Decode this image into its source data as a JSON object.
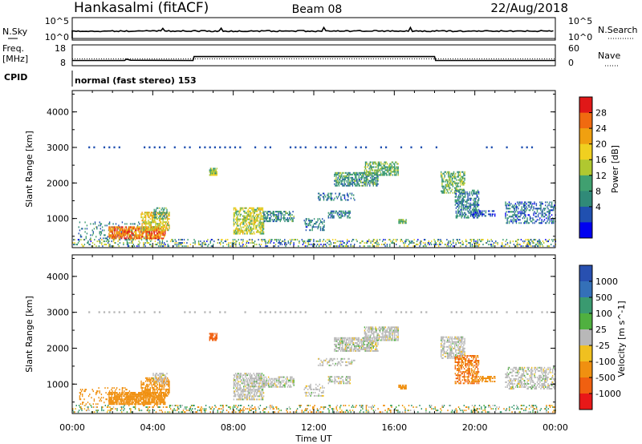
{
  "header": {
    "station": "Hankasalmi (fitACF)",
    "beam": "Beam 08",
    "date": "22/Aug/2018"
  },
  "status_panel": {
    "nsky_label": "N.Sky",
    "nsky_ticks": [
      "10^5",
      "10^0"
    ],
    "nsearch_label": "N.Search",
    "nsearch_ticks": [
      "10^5",
      "10^0"
    ],
    "freq_label_line1": "Freq.",
    "freq_label_line2": "[MHz]",
    "freq_ticks": [
      "18",
      "8"
    ],
    "nave_label": "Nave",
    "nave_ticks": [
      "60",
      "0"
    ],
    "cpid_label": "CPID",
    "cpid_text": "normal (fast stereo) 153",
    "freq_series": [
      {
        "t": 0.0,
        "mhz": 10.5
      },
      {
        "t": 2.6,
        "mhz": 10.5
      },
      {
        "t": 2.7,
        "mhz": 11.2
      },
      {
        "t": 2.9,
        "mhz": 10.6
      },
      {
        "t": 6.0,
        "mhz": 10.5
      },
      {
        "t": 6.05,
        "mhz": 12.4
      },
      {
        "t": 18.0,
        "mhz": 12.4
      },
      {
        "t": 18.05,
        "mhz": 10.5
      },
      {
        "t": 24.0,
        "mhz": 10.5
      }
    ],
    "nave_level": 20
  },
  "power_colorbar": {
    "label": "Power [dB]",
    "ticks": [
      "28",
      "24",
      "20",
      "16",
      "12",
      "8",
      "4"
    ],
    "colors": [
      "#e01818",
      "#f06a10",
      "#f0a010",
      "#f0d020",
      "#b0c830",
      "#40a070",
      "#308a78",
      "#2050b0",
      "#0000f0"
    ]
  },
  "velocity_colorbar": {
    "label": "Velocity [m s^-1]",
    "ticks": [
      "1000",
      "500",
      "100",
      "25",
      "-25",
      "-100",
      "-500",
      "-1000"
    ],
    "colors": [
      "#2850b0",
      "#3470b8",
      "#3a9a70",
      "#50b040",
      "#b8b8b8",
      "#f0c020",
      "#f09010",
      "#f06010",
      "#e81818"
    ]
  },
  "axes": {
    "y_label": "Slant Range [km]",
    "x_label": "Time UT",
    "y_ticks": [
      "1000",
      "2000",
      "3000",
      "4000"
    ],
    "x_ticks": [
      "00:00",
      "04:00",
      "08:00",
      "12:00",
      "16:00",
      "20:00",
      "00:00"
    ]
  },
  "chart_data": [
    {
      "type": "heatmap",
      "title": "Power",
      "xlabel": "Time UT",
      "ylabel": "Slant Range [km]",
      "xlim": [
        0,
        24
      ],
      "ylim": [
        180,
        4600
      ],
      "colorbar_range": [
        0,
        30
      ],
      "regions": [
        {
          "t0": 0.0,
          "t1": 24.0,
          "r0": 200,
          "r1": 420,
          "v": 10,
          "d": 0.28
        },
        {
          "t0": 0.3,
          "t1": 4.2,
          "r0": 420,
          "r1": 900,
          "v": 9,
          "d": 0.15
        },
        {
          "t0": 1.8,
          "t1": 4.6,
          "r0": 420,
          "r1": 780,
          "v": 24,
          "d": 0.75
        },
        {
          "t0": 3.4,
          "t1": 4.8,
          "r0": 650,
          "r1": 1150,
          "v": 18,
          "d": 0.55
        },
        {
          "t0": 4.0,
          "t1": 4.7,
          "r0": 1000,
          "r1": 1300,
          "v": 10,
          "d": 0.5
        },
        {
          "t0": 6.8,
          "t1": 7.2,
          "r0": 2200,
          "r1": 2400,
          "v": 14,
          "d": 0.8
        },
        {
          "t0": 8.0,
          "t1": 9.5,
          "r0": 550,
          "r1": 1300,
          "v": 16,
          "d": 0.6
        },
        {
          "t0": 9.5,
          "t1": 11.0,
          "r0": 900,
          "r1": 1200,
          "v": 9,
          "d": 0.55
        },
        {
          "t0": 11.5,
          "t1": 12.5,
          "r0": 650,
          "r1": 1000,
          "v": 8,
          "d": 0.35
        },
        {
          "t0": 12.7,
          "t1": 13.8,
          "r0": 1000,
          "r1": 1200,
          "v": 8,
          "d": 0.5
        },
        {
          "t0": 13.0,
          "t1": 15.2,
          "r0": 1900,
          "r1": 2300,
          "v": 10,
          "d": 0.65
        },
        {
          "t0": 14.5,
          "t1": 16.2,
          "r0": 2200,
          "r1": 2600,
          "v": 12,
          "d": 0.6
        },
        {
          "t0": 12.2,
          "t1": 14.0,
          "r0": 1500,
          "r1": 1700,
          "v": 8,
          "d": 0.35
        },
        {
          "t0": 16.2,
          "t1": 16.6,
          "r0": 850,
          "r1": 950,
          "v": 12,
          "d": 0.8
        },
        {
          "t0": 18.3,
          "t1": 19.5,
          "r0": 1700,
          "r1": 2300,
          "v": 12,
          "d": 0.55
        },
        {
          "t0": 19.0,
          "t1": 20.2,
          "r0": 1000,
          "r1": 1800,
          "v": 8,
          "d": 0.5
        },
        {
          "t0": 19.8,
          "t1": 21.0,
          "r0": 1050,
          "r1": 1200,
          "v": 6,
          "d": 0.45
        },
        {
          "t0": 21.5,
          "t1": 24.0,
          "r0": 850,
          "r1": 1450,
          "v": 7,
          "d": 0.4
        }
      ]
    },
    {
      "type": "heatmap",
      "title": "Velocity",
      "xlabel": "Time UT",
      "ylabel": "Slant Range [km]",
      "xlim": [
        0,
        24
      ],
      "ylim": [
        180,
        4600
      ],
      "colorbar_range": [
        -1000,
        1000
      ],
      "regions": [
        {
          "t0": 0.0,
          "t1": 24.0,
          "r0": 200,
          "r1": 420,
          "v": 0,
          "d": 0.22
        },
        {
          "t0": 0.3,
          "t1": 4.2,
          "r0": 420,
          "r1": 900,
          "v": -150,
          "d": 0.15
        },
        {
          "t0": 1.8,
          "t1": 4.6,
          "r0": 420,
          "r1": 780,
          "v": -150,
          "d": 0.75
        },
        {
          "t0": 3.4,
          "t1": 4.8,
          "r0": 650,
          "r1": 1150,
          "v": -150,
          "d": 0.55
        },
        {
          "t0": 4.0,
          "t1": 4.7,
          "r0": 1000,
          "r1": 1300,
          "v": 0,
          "d": 0.45
        },
        {
          "t0": 6.8,
          "t1": 7.2,
          "r0": 2200,
          "r1": 2400,
          "v": -500,
          "d": 0.8
        },
        {
          "t0": 8.0,
          "t1": 9.5,
          "r0": 550,
          "r1": 1300,
          "v": 0,
          "d": 0.6
        },
        {
          "t0": 9.5,
          "t1": 11.0,
          "r0": 900,
          "r1": 1200,
          "v": 0,
          "d": 0.55
        },
        {
          "t0": 11.5,
          "t1": 12.5,
          "r0": 650,
          "r1": 1000,
          "v": 0,
          "d": 0.35
        },
        {
          "t0": 12.7,
          "t1": 13.8,
          "r0": 1000,
          "r1": 1200,
          "v": 0,
          "d": 0.5
        },
        {
          "t0": 13.0,
          "t1": 15.2,
          "r0": 1900,
          "r1": 2300,
          "v": 0,
          "d": 0.65
        },
        {
          "t0": 14.5,
          "t1": 16.2,
          "r0": 2200,
          "r1": 2600,
          "v": 0,
          "d": 0.6
        },
        {
          "t0": 12.2,
          "t1": 14.0,
          "r0": 1500,
          "r1": 1700,
          "v": 0,
          "d": 0.35
        },
        {
          "t0": 16.2,
          "t1": 16.6,
          "r0": 850,
          "r1": 950,
          "v": -120,
          "d": 0.8
        },
        {
          "t0": 18.3,
          "t1": 19.5,
          "r0": 1700,
          "r1": 2300,
          "v": 0,
          "d": 0.55
        },
        {
          "t0": 19.0,
          "t1": 20.2,
          "r0": 1000,
          "r1": 1800,
          "v": -300,
          "d": 0.5
        },
        {
          "t0": 19.8,
          "t1": 21.0,
          "r0": 1050,
          "r1": 1200,
          "v": -120,
          "d": 0.45
        },
        {
          "t0": 21.5,
          "t1": 24.0,
          "r0": 850,
          "r1": 1450,
          "v": 0,
          "d": 0.4
        }
      ]
    }
  ]
}
